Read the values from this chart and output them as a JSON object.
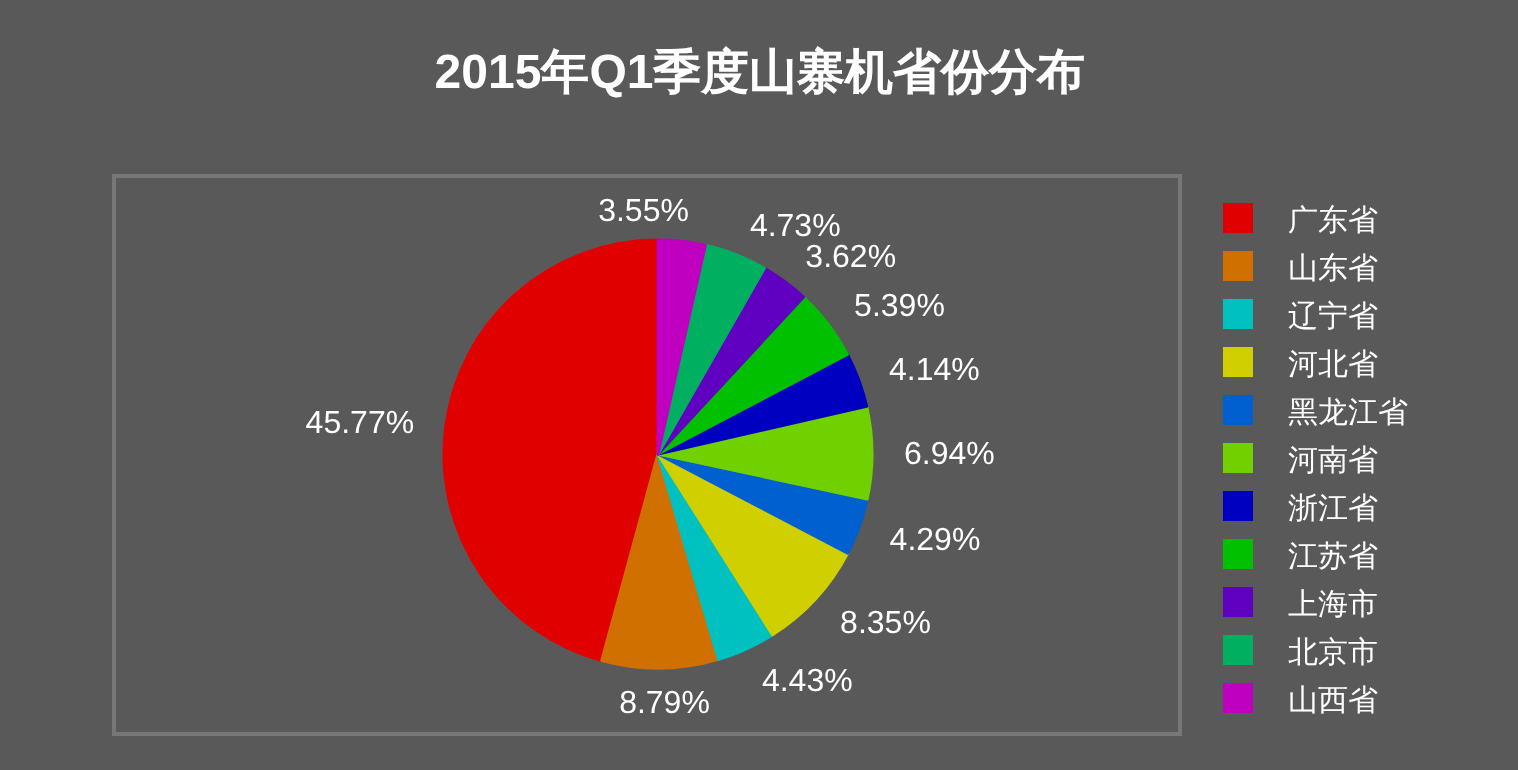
{
  "chart_data": {
    "type": "pie",
    "title": "2015年Q1季度山寨机省份分布",
    "categories": [
      "广东省",
      "山东省",
      "辽宁省",
      "河北省",
      "黑龙江省",
      "河南省",
      "浙江省",
      "江苏省",
      "上海市",
      "北京市",
      "山西省"
    ],
    "values": [
      45.77,
      8.79,
      4.43,
      8.35,
      4.29,
      6.94,
      4.14,
      5.39,
      3.62,
      4.73,
      3.55
    ],
    "value_labels": [
      "45.77%",
      "8.79%",
      "4.43%",
      "8.35%",
      "4.29%",
      "6.94%",
      "4.14%",
      "5.39%",
      "3.62%",
      "4.73%",
      "3.55%"
    ],
    "colors": [
      "#e00000",
      "#d07000",
      "#00c0c0",
      "#d0d000",
      "#0060d0",
      "#70d000",
      "#0000c0",
      "#00c000",
      "#6000c0",
      "#00b060",
      "#c000c0"
    ],
    "legend": "right"
  }
}
